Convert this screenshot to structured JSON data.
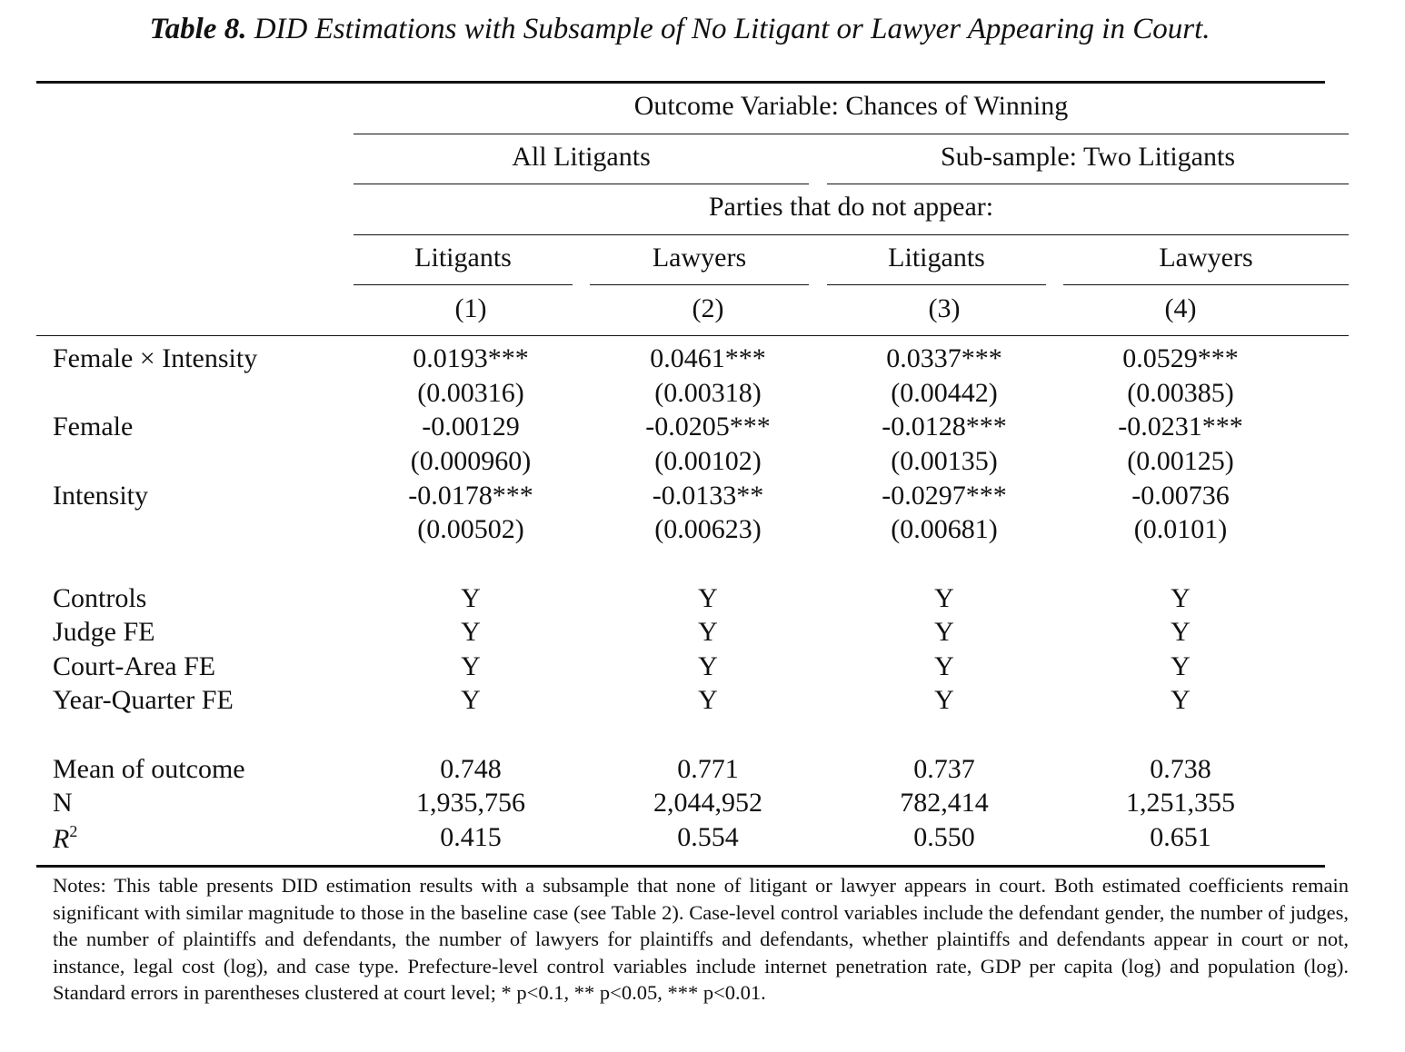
{
  "caption": {
    "label": "Table 8.",
    "text": "DID Estimations with Subsample of No Litigant or Lawyer Appearing in Court."
  },
  "header": {
    "outcome": "Outcome Variable: Chances of Winning",
    "group_all": "All Litigants",
    "group_sub": "Sub-sample: Two Litigants",
    "parties": "Parties that do not appear:",
    "cols": [
      "Litigants",
      "Lawyers",
      "Litigants",
      "Lawyers"
    ],
    "nums": [
      "(1)",
      "(2)",
      "(3)",
      "(4)"
    ]
  },
  "rows": [
    {
      "label": "Female × Intensity",
      "coef": [
        "0.0193***",
        "0.0461***",
        "0.0337***",
        "0.0529***"
      ],
      "se": [
        "(0.00316)",
        "(0.00318)",
        "(0.00442)",
        "(0.00385)"
      ]
    },
    {
      "label": "Female",
      "coef": [
        "-0.00129",
        "-0.0205***",
        "-0.0128***",
        "-0.0231***"
      ],
      "se": [
        "(0.000960)",
        "(0.00102)",
        "(0.00135)",
        "(0.00125)"
      ]
    },
    {
      "label": "Intensity",
      "coef": [
        "-0.0178***",
        "-0.0133**",
        "-0.0297***",
        "-0.00736"
      ],
      "se": [
        "(0.00502)",
        "(0.00623)",
        "(0.00681)",
        "(0.0101)"
      ]
    }
  ],
  "fe_rows": [
    {
      "label": "Controls",
      "vals": [
        "Y",
        "Y",
        "Y",
        "Y"
      ]
    },
    {
      "label": "Judge FE",
      "vals": [
        "Y",
        "Y",
        "Y",
        "Y"
      ]
    },
    {
      "label": "Court-Area FE",
      "vals": [
        "Y",
        "Y",
        "Y",
        "Y"
      ]
    },
    {
      "label": "Year-Quarter FE",
      "vals": [
        "Y",
        "Y",
        "Y",
        "Y"
      ]
    }
  ],
  "stats": [
    {
      "label": "Mean of outcome",
      "vals": [
        "0.748",
        "0.771",
        "0.737",
        "0.738"
      ]
    },
    {
      "label": "N",
      "vals": [
        "1,935,756",
        "2,044,952",
        "782,414",
        "1,251,355"
      ]
    },
    {
      "label_base": "R",
      "label_sup": "2",
      "vals": [
        "0.415",
        "0.554",
        "0.550",
        "0.651"
      ]
    }
  ],
  "notes": "Notes: This table presents DID estimation results with a subsample that none of litigant or lawyer appears in court. Both estimated coefficients remain significant with similar magnitude to those in the baseline case (see Table 2). Case-level control variables include the defendant gender, the number of judges, the number of plaintiffs and defendants, the number of lawyers for plaintiffs and defendants, whether plaintiffs and defendants appear in court or not, instance, legal cost (log), and case type. Prefecture-level control variables include internet penetration rate, GDP per capita (log) and population (log). Standard errors in parentheses clustered at court level; * p<0.1, ** p<0.05, *** p<0.01."
}
